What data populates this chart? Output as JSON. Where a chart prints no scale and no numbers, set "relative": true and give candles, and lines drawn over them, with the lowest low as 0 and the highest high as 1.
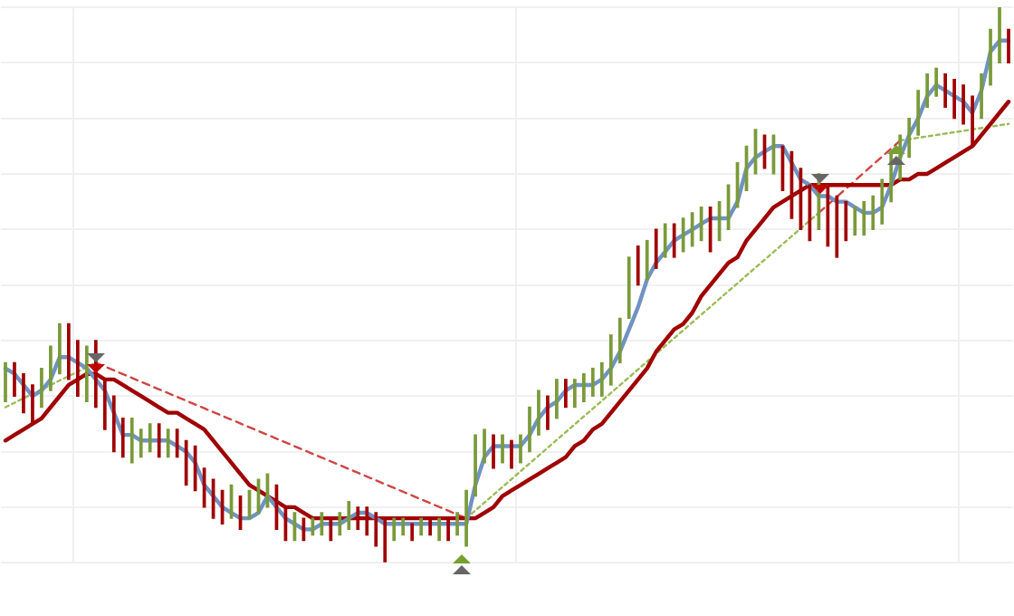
{
  "chart_data": {
    "type": "candlestick",
    "relative": true,
    "grid": true,
    "categories": [
      null,
      null,
      null,
      null,
      null,
      null,
      null,
      null,
      null,
      null,
      null,
      null,
      null,
      null,
      null,
      null,
      null,
      null,
      null,
      null,
      null,
      null,
      null,
      null,
      null,
      null,
      null,
      null,
      null,
      null,
      null,
      null,
      null,
      null,
      null,
      null,
      null,
      null,
      null,
      null,
      null,
      null,
      null,
      null,
      null,
      null,
      null,
      null,
      null,
      null,
      null,
      null,
      null,
      null,
      null,
      null,
      null,
      null,
      null,
      null,
      null,
      null,
      null,
      null,
      null,
      null,
      null,
      null,
      null,
      null,
      null,
      null,
      null,
      null,
      null,
      null,
      null,
      null,
      null,
      null,
      null,
      null,
      null,
      null,
      null,
      null,
      null,
      null,
      null,
      null,
      null,
      null,
      null,
      null,
      null,
      null,
      null,
      null,
      null,
      null,
      null,
      null,
      null,
      null,
      null,
      null,
      null,
      null,
      null,
      null,
      null,
      null
    ],
    "ohlc": [
      [
        0.29,
        0.36,
        0.29,
        0.36
      ],
      [
        0.36,
        0.36,
        0.3,
        0.3
      ],
      [
        0.34,
        0.34,
        0.27,
        0.27
      ],
      [
        0.32,
        0.32,
        0.25,
        0.25
      ],
      [
        0.28,
        0.35,
        0.28,
        0.35
      ],
      [
        0.31,
        0.39,
        0.31,
        0.39
      ],
      [
        0.34,
        0.43,
        0.34,
        0.43
      ],
      [
        0.43,
        0.43,
        0.33,
        0.33
      ],
      [
        0.4,
        0.4,
        0.3,
        0.3
      ],
      [
        0.29,
        0.39,
        0.29,
        0.39
      ],
      [
        0.4,
        0.4,
        0.28,
        0.28
      ],
      [
        0.33,
        0.33,
        0.24,
        0.24
      ],
      [
        0.3,
        0.3,
        0.2,
        0.2
      ],
      [
        0.26,
        0.26,
        0.19,
        0.19
      ],
      [
        0.18,
        0.26,
        0.18,
        0.26
      ],
      [
        0.19,
        0.24,
        0.19,
        0.24
      ],
      [
        0.2,
        0.25,
        0.2,
        0.25
      ],
      [
        0.25,
        0.25,
        0.19,
        0.19
      ],
      [
        0.19,
        0.24,
        0.19,
        0.24
      ],
      [
        0.24,
        0.24,
        0.19,
        0.19
      ],
      [
        0.22,
        0.22,
        0.14,
        0.14
      ],
      [
        0.21,
        0.21,
        0.13,
        0.13
      ],
      [
        0.17,
        0.17,
        0.1,
        0.1
      ],
      [
        0.15,
        0.15,
        0.08,
        0.08
      ],
      [
        0.13,
        0.13,
        0.07,
        0.07
      ],
      [
        0.08,
        0.14,
        0.08,
        0.14
      ],
      [
        0.12,
        0.12,
        0.06,
        0.06
      ],
      [
        0.08,
        0.13,
        0.08,
        0.13
      ],
      [
        0.09,
        0.15,
        0.09,
        0.15
      ],
      [
        0.1,
        0.16,
        0.1,
        0.16
      ],
      [
        0.14,
        0.14,
        0.06,
        0.06
      ],
      [
        0.1,
        0.1,
        0.04,
        0.04
      ],
      [
        0.04,
        0.09,
        0.04,
        0.09
      ],
      [
        0.08,
        0.08,
        0.04,
        0.04
      ],
      [
        0.05,
        0.08,
        0.05,
        0.08
      ],
      [
        0.05,
        0.09,
        0.05,
        0.09
      ],
      [
        0.08,
        0.08,
        0.04,
        0.04
      ],
      [
        0.05,
        0.09,
        0.05,
        0.09
      ],
      [
        0.06,
        0.11,
        0.06,
        0.11
      ],
      [
        0.1,
        0.1,
        0.06,
        0.06
      ],
      [
        0.1,
        0.1,
        0.05,
        0.05
      ],
      [
        0.09,
        0.09,
        0.03,
        0.03
      ],
      [
        0.08,
        0.08,
        0.0,
        0.0
      ],
      [
        0.04,
        0.08,
        0.04,
        0.08
      ],
      [
        0.05,
        0.08,
        0.05,
        0.08
      ],
      [
        0.07,
        0.07,
        0.04,
        0.04
      ],
      [
        0.05,
        0.08,
        0.05,
        0.08
      ],
      [
        0.08,
        0.08,
        0.05,
        0.05
      ],
      [
        0.04,
        0.08,
        0.04,
        0.08
      ],
      [
        0.08,
        0.08,
        0.04,
        0.04
      ],
      [
        0.05,
        0.09,
        0.05,
        0.09
      ],
      [
        0.03,
        0.13,
        0.03,
        0.13
      ],
      [
        0.12,
        0.23,
        0.12,
        0.23
      ],
      [
        0.18,
        0.24,
        0.18,
        0.24
      ],
      [
        0.23,
        0.23,
        0.17,
        0.17
      ],
      [
        0.18,
        0.23,
        0.18,
        0.23
      ],
      [
        0.22,
        0.22,
        0.17,
        0.17
      ],
      [
        0.18,
        0.23,
        0.18,
        0.23
      ],
      [
        0.2,
        0.28,
        0.2,
        0.28
      ],
      [
        0.23,
        0.31,
        0.23,
        0.31
      ],
      [
        0.3,
        0.3,
        0.24,
        0.24
      ],
      [
        0.26,
        0.33,
        0.26,
        0.33
      ],
      [
        0.33,
        0.33,
        0.28,
        0.28
      ],
      [
        0.28,
        0.33,
        0.28,
        0.33
      ],
      [
        0.29,
        0.34,
        0.29,
        0.34
      ],
      [
        0.3,
        0.35,
        0.3,
        0.35
      ],
      [
        0.3,
        0.36,
        0.3,
        0.36
      ],
      [
        0.32,
        0.41,
        0.32,
        0.41
      ],
      [
        0.36,
        0.44,
        0.36,
        0.44
      ],
      [
        0.44,
        0.55,
        0.44,
        0.55
      ],
      [
        0.57,
        0.57,
        0.5,
        0.5
      ],
      [
        0.51,
        0.58,
        0.51,
        0.58
      ],
      [
        0.6,
        0.6,
        0.53,
        0.53
      ],
      [
        0.55,
        0.61,
        0.55,
        0.61
      ],
      [
        0.61,
        0.61,
        0.55,
        0.55
      ],
      [
        0.56,
        0.62,
        0.56,
        0.62
      ],
      [
        0.57,
        0.63,
        0.57,
        0.63
      ],
      [
        0.58,
        0.64,
        0.58,
        0.64
      ],
      [
        0.64,
        0.64,
        0.56,
        0.56
      ],
      [
        0.58,
        0.65,
        0.58,
        0.65
      ],
      [
        0.6,
        0.68,
        0.6,
        0.68
      ],
      [
        0.64,
        0.72,
        0.64,
        0.72
      ],
      [
        0.67,
        0.75,
        0.67,
        0.75
      ],
      [
        0.7,
        0.78,
        0.7,
        0.78
      ],
      [
        0.77,
        0.77,
        0.71,
        0.71
      ],
      [
        0.7,
        0.77,
        0.7,
        0.77
      ],
      [
        0.75,
        0.75,
        0.67,
        0.67
      ],
      [
        0.74,
        0.74,
        0.62,
        0.62
      ],
      [
        0.71,
        0.71,
        0.6,
        0.6
      ],
      [
        0.68,
        0.68,
        0.58,
        0.58
      ],
      [
        0.6,
        0.7,
        0.6,
        0.7
      ],
      [
        0.68,
        0.68,
        0.57,
        0.57
      ],
      [
        0.66,
        0.66,
        0.55,
        0.55
      ],
      [
        0.65,
        0.65,
        0.58,
        0.58
      ],
      [
        0.59,
        0.64,
        0.59,
        0.64
      ],
      [
        0.59,
        0.65,
        0.59,
        0.65
      ],
      [
        0.6,
        0.66,
        0.6,
        0.66
      ],
      [
        0.61,
        0.69,
        0.61,
        0.69
      ],
      [
        0.65,
        0.74,
        0.65,
        0.74
      ],
      [
        0.69,
        0.77,
        0.69,
        0.77
      ],
      [
        0.73,
        0.8,
        0.73,
        0.8
      ],
      [
        0.77,
        0.85,
        0.77,
        0.85
      ],
      [
        0.82,
        0.88,
        0.82,
        0.88
      ],
      [
        0.84,
        0.89,
        0.84,
        0.89
      ],
      [
        0.88,
        0.88,
        0.82,
        0.82
      ],
      [
        0.87,
        0.87,
        0.8,
        0.8
      ],
      [
        0.86,
        0.86,
        0.79,
        0.79
      ],
      [
        0.84,
        0.84,
        0.75,
        0.75
      ],
      [
        0.8,
        0.88,
        0.8,
        0.88
      ],
      [
        0.86,
        0.96,
        0.86,
        0.96
      ],
      [
        0.9,
        1.0,
        0.9,
        1.0
      ],
      [
        0.96,
        0.96,
        0.9,
        0.9
      ]
    ],
    "series": [
      {
        "type": "line",
        "color": "#6f93c2",
        "line_style": "solid",
        "values": [
          0.35,
          0.34,
          0.32,
          0.3,
          0.31,
          0.33,
          0.37,
          0.37,
          0.36,
          0.35,
          0.33,
          0.31,
          0.27,
          0.23,
          0.23,
          0.22,
          0.22,
          0.22,
          0.22,
          0.21,
          0.2,
          0.18,
          0.14,
          0.12,
          0.1,
          0.09,
          0.08,
          0.08,
          0.09,
          0.12,
          0.1,
          0.08,
          0.07,
          0.06,
          0.06,
          0.07,
          0.07,
          0.07,
          0.08,
          0.09,
          0.09,
          0.08,
          0.07,
          0.07,
          0.07,
          0.07,
          0.07,
          0.07,
          0.07,
          0.07,
          0.07,
          0.07,
          0.14,
          0.19,
          0.21,
          0.21,
          0.21,
          0.21,
          0.23,
          0.26,
          0.28,
          0.29,
          0.31,
          0.32,
          0.32,
          0.32,
          0.33,
          0.35,
          0.38,
          0.42,
          0.46,
          0.51,
          0.54,
          0.56,
          0.58,
          0.59,
          0.6,
          0.61,
          0.62,
          0.62,
          0.62,
          0.65,
          0.71,
          0.73,
          0.74,
          0.75,
          0.75,
          0.72,
          0.69,
          0.68,
          0.66,
          0.66,
          0.65,
          0.65,
          0.64,
          0.63,
          0.63,
          0.64,
          0.68,
          0.73,
          0.77,
          0.8,
          0.84,
          0.86,
          0.85,
          0.84,
          0.83,
          0.81,
          0.85,
          0.92,
          0.94,
          0.94
        ]
      },
      {
        "type": "line",
        "color": "#a00000",
        "line_style": "solid",
        "values": [
          0.22,
          0.23,
          0.24,
          0.25,
          0.26,
          0.28,
          0.3,
          0.32,
          0.33,
          0.34,
          0.34,
          0.33,
          0.33,
          0.32,
          0.31,
          0.3,
          0.29,
          0.28,
          0.27,
          0.27,
          0.26,
          0.25,
          0.24,
          0.22,
          0.2,
          0.18,
          0.16,
          0.14,
          0.13,
          0.12,
          0.11,
          0.1,
          0.1,
          0.09,
          0.08,
          0.08,
          0.08,
          0.08,
          0.08,
          0.08,
          0.08,
          0.08,
          0.08,
          0.08,
          0.08,
          0.08,
          0.08,
          0.08,
          0.08,
          0.08,
          0.08,
          0.08,
          0.08,
          0.09,
          0.1,
          0.12,
          0.13,
          0.14,
          0.15,
          0.16,
          0.17,
          0.18,
          0.19,
          0.21,
          0.22,
          0.24,
          0.25,
          0.27,
          0.29,
          0.31,
          0.33,
          0.35,
          0.38,
          0.4,
          0.42,
          0.43,
          0.45,
          0.48,
          0.5,
          0.52,
          0.54,
          0.55,
          0.58,
          0.6,
          0.62,
          0.64,
          0.65,
          0.66,
          0.67,
          0.68,
          0.68,
          0.68,
          0.68,
          0.68,
          0.68,
          0.68,
          0.68,
          0.68,
          0.68,
          0.69,
          0.69,
          0.7,
          0.7,
          0.71,
          0.72,
          0.73,
          0.74,
          0.75,
          0.77,
          0.79,
          0.81,
          0.83
        ]
      },
      {
        "type": "line",
        "color": "#9bbb59",
        "line_style": "dotted",
        "values": [
          0.28,
          null,
          null,
          null,
          null,
          null,
          null,
          null,
          null,
          null,
          0.36,
          null,
          null,
          null,
          null,
          null,
          null,
          null,
          null,
          null,
          null,
          null,
          null,
          null,
          null,
          null,
          null,
          null,
          null,
          null,
          null,
          null,
          null,
          null,
          null,
          null,
          null,
          null,
          null,
          null,
          null,
          null,
          null,
          null,
          null,
          null,
          null,
          null,
          null,
          null,
          null,
          null,
          null,
          null,
          null,
          null,
          null,
          null,
          null,
          null,
          null,
          null,
          null,
          null,
          null,
          null,
          null,
          null,
          null,
          null,
          null,
          null,
          null,
          null,
          null,
          null,
          null,
          null,
          null,
          null,
          null,
          null,
          null,
          null,
          null,
          null,
          null,
          null,
          null,
          null,
          null,
          null,
          null,
          null,
          null,
          null,
          null,
          null,
          null,
          null,
          null,
          null,
          null,
          null,
          null,
          null,
          null,
          null,
          null,
          null,
          null,
          null
        ]
      },
      {
        "type": "line",
        "color": "#d04545",
        "line_style": "dashed",
        "values": [
          null,
          null,
          null,
          null,
          null,
          null,
          null,
          null,
          null,
          null,
          0.36,
          null,
          null,
          null,
          null,
          null,
          null,
          null,
          null,
          null,
          null,
          null,
          null,
          null,
          null,
          null,
          null,
          null,
          null,
          null,
          null,
          null,
          null,
          null,
          null,
          null,
          null,
          null,
          null,
          null,
          null,
          null,
          null,
          null,
          null,
          null,
          null,
          null,
          null,
          null,
          null,
          0.08,
          null,
          null,
          null,
          null,
          null,
          null,
          null,
          null,
          null,
          null,
          null,
          null,
          null,
          null,
          null,
          null,
          null,
          null,
          null,
          null,
          null,
          null,
          null,
          null,
          null,
          null,
          null,
          null,
          null,
          null,
          null,
          null,
          null,
          null,
          null,
          null,
          null,
          null,
          null,
          null,
          null,
          null,
          null,
          null,
          null,
          null,
          null,
          null,
          null,
          null,
          null,
          null,
          null,
          null,
          null,
          null,
          null,
          null,
          null,
          null
        ]
      },
      {
        "type": "line",
        "color": "#9bbb59",
        "line_style": "dotted",
        "values": [
          null,
          null,
          null,
          null,
          null,
          null,
          null,
          null,
          null,
          null,
          null,
          null,
          null,
          null,
          null,
          null,
          null,
          null,
          null,
          null,
          null,
          null,
          null,
          null,
          null,
          null,
          null,
          null,
          null,
          null,
          null,
          null,
          null,
          null,
          null,
          null,
          null,
          null,
          null,
          null,
          null,
          null,
          null,
          null,
          null,
          null,
          null,
          null,
          null,
          null,
          null,
          0.08,
          null,
          null,
          null,
          null,
          null,
          null,
          null,
          null,
          null,
          null,
          null,
          null,
          null,
          null,
          null,
          null,
          null,
          null,
          null,
          null,
          null,
          null,
          null,
          null,
          null,
          null,
          null,
          null,
          null,
          null,
          null,
          null,
          null,
          null,
          null,
          null,
          null,
          null,
          0.63,
          null,
          null,
          null,
          null,
          null,
          null,
          null,
          null,
          null,
          null,
          null,
          null,
          null,
          null,
          null,
          null,
          null,
          null,
          null,
          null,
          null
        ]
      },
      {
        "type": "line",
        "color": "#d04545",
        "line_style": "dashed",
        "values": [
          null,
          null,
          null,
          null,
          null,
          null,
          null,
          null,
          null,
          null,
          null,
          null,
          null,
          null,
          null,
          null,
          null,
          null,
          null,
          null,
          null,
          null,
          null,
          null,
          null,
          null,
          null,
          null,
          null,
          null,
          null,
          null,
          null,
          null,
          null,
          null,
          null,
          null,
          null,
          null,
          null,
          null,
          null,
          null,
          null,
          null,
          null,
          null,
          null,
          null,
          null,
          null,
          null,
          null,
          null,
          null,
          null,
          null,
          null,
          null,
          null,
          null,
          null,
          null,
          null,
          null,
          null,
          null,
          null,
          null,
          null,
          null,
          null,
          null,
          null,
          null,
          null,
          null,
          null,
          null,
          null,
          null,
          null,
          null,
          null,
          null,
          null,
          null,
          null,
          null,
          0.63,
          null,
          null,
          null,
          null,
          null,
          null,
          null,
          null,
          0.76,
          null,
          null,
          null,
          null,
          null,
          null,
          null,
          null,
          null,
          null,
          null,
          null
        ]
      },
      {
        "type": "line",
        "color": "#9bbb59",
        "line_style": "dotted",
        "values": [
          null,
          null,
          null,
          null,
          null,
          null,
          null,
          null,
          null,
          null,
          null,
          null,
          null,
          null,
          null,
          null,
          null,
          null,
          null,
          null,
          null,
          null,
          null,
          null,
          null,
          null,
          null,
          null,
          null,
          null,
          null,
          null,
          null,
          null,
          null,
          null,
          null,
          null,
          null,
          null,
          null,
          null,
          null,
          null,
          null,
          null,
          null,
          null,
          null,
          null,
          null,
          null,
          null,
          null,
          null,
          null,
          null,
          null,
          null,
          null,
          null,
          null,
          null,
          null,
          null,
          null,
          null,
          null,
          null,
          null,
          null,
          null,
          null,
          null,
          null,
          null,
          null,
          null,
          null,
          null,
          null,
          null,
          null,
          null,
          null,
          null,
          null,
          null,
          null,
          null,
          null,
          null,
          null,
          null,
          null,
          null,
          null,
          null,
          null,
          0.76,
          null,
          null,
          null,
          null,
          null,
          null,
          null,
          null,
          null,
          null,
          null,
          0.79
        ]
      }
    ],
    "colors": [
      "#7a9a3a",
      "#a00000",
      "#a00000",
      "#a00000",
      "#7a9a3a",
      "#7a9a3a",
      "#7a9a3a",
      "#a00000",
      "#a00000",
      "#7a9a3a",
      "#a00000",
      "#a00000",
      "#a00000",
      "#a00000",
      "#7a9a3a",
      "#7a9a3a",
      "#7a9a3a",
      "#a00000",
      "#7a9a3a",
      "#a00000",
      "#a00000",
      "#a00000",
      "#a00000",
      "#a00000",
      "#a00000",
      "#7a9a3a",
      "#a00000",
      "#7a9a3a",
      "#7a9a3a",
      "#7a9a3a",
      "#a00000",
      "#a00000",
      "#7a9a3a",
      "#a00000",
      "#7a9a3a",
      "#7a9a3a",
      "#a00000",
      "#7a9a3a",
      "#7a9a3a",
      "#a00000",
      "#a00000",
      "#a00000",
      "#a00000",
      "#7a9a3a",
      "#7a9a3a",
      "#a00000",
      "#7a9a3a",
      "#a00000",
      "#7a9a3a",
      "#a00000",
      "#7a9a3a",
      "#7a9a3a",
      "#7a9a3a",
      "#7a9a3a",
      "#a00000",
      "#7a9a3a",
      "#a00000",
      "#7a9a3a",
      "#7a9a3a",
      "#7a9a3a",
      "#a00000",
      "#7a9a3a",
      "#a00000",
      "#7a9a3a",
      "#7a9a3a",
      "#7a9a3a",
      "#7a9a3a",
      "#7a9a3a",
      "#7a9a3a",
      "#7a9a3a",
      "#a00000",
      "#7a9a3a",
      "#a00000",
      "#7a9a3a",
      "#a00000",
      "#7a9a3a",
      "#7a9a3a",
      "#7a9a3a",
      "#a00000",
      "#7a9a3a",
      "#7a9a3a",
      "#7a9a3a",
      "#7a9a3a",
      "#7a9a3a",
      "#a00000",
      "#7a9a3a",
      "#a00000",
      "#a00000",
      "#a00000",
      "#a00000",
      "#7a9a3a",
      "#a00000",
      "#a00000",
      "#a00000",
      "#7a9a3a",
      "#7a9a3a",
      "#7a9a3a",
      "#7a9a3a",
      "#7a9a3a",
      "#7a9a3a",
      "#7a9a3a",
      "#7a9a3a",
      "#7a9a3a",
      "#7a9a3a",
      "#a00000",
      "#a00000",
      "#a00000",
      "#a00000",
      "#7a9a3a",
      "#7a9a3a",
      "#7a9a3a",
      "#a00000"
    ]
  }
}
